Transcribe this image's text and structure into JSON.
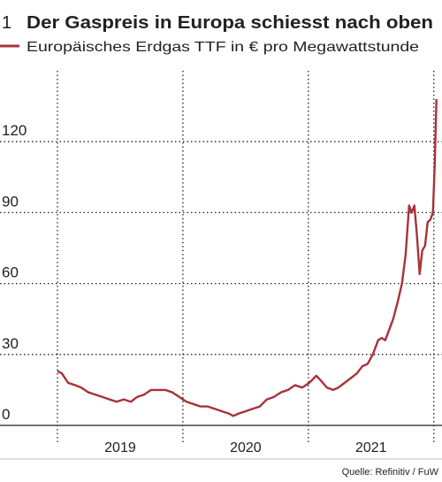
{
  "chart_data": {
    "type": "line",
    "chart_number": "1",
    "title": "Der Gaspreis in Europa schiesst nach oben",
    "source": "Quelle: Refinitiv / FuW",
    "x": [
      2019.0,
      2019.035,
      2019.085,
      2019.141,
      2019.19,
      2019.246,
      2019.303,
      2019.359,
      2019.415,
      2019.472,
      2019.528,
      2019.585,
      2019.634,
      2019.69,
      2019.746,
      2019.803,
      2019.859,
      2019.915,
      2019.972,
      2020.028,
      2020.085,
      2020.141,
      2020.197,
      2020.254,
      2020.31,
      2020.366,
      2020.401,
      2020.444,
      2020.5,
      2020.556,
      2020.613,
      2020.669,
      2020.725,
      2020.782,
      2020.838,
      2020.894,
      2020.951,
      2021.007,
      2021.063,
      2021.099,
      2021.148,
      2021.197,
      2021.239,
      2021.289,
      2021.338,
      2021.387,
      2021.43,
      2021.472,
      2021.514,
      2021.556,
      2021.585,
      2021.613,
      2021.641,
      2021.676,
      2021.711,
      2021.746,
      2021.775,
      2021.803,
      2021.824,
      2021.845,
      2021.866,
      2021.887,
      2021.908,
      2021.93,
      2021.951,
      2021.972,
      2021.993,
      2022.007,
      2022.021
    ],
    "series": [
      {
        "name": "Europäisches Erdgas TTF in € pro Megawattstunde",
        "color": "#a8323a",
        "values": [
          23,
          22,
          18,
          17,
          16,
          14,
          13,
          12,
          11,
          10,
          11,
          10,
          12,
          13,
          15,
          15,
          15,
          14,
          12,
          10,
          9,
          8,
          8,
          7,
          6,
          5,
          4,
          5,
          6,
          7,
          8,
          11,
          12,
          14,
          15,
          17,
          16,
          18,
          21,
          19,
          16,
          15,
          16,
          18,
          20,
          22,
          25,
          26,
          30,
          36,
          37,
          36,
          40,
          45,
          52,
          60,
          72,
          93,
          90,
          93,
          80,
          64,
          74,
          76,
          86,
          87,
          90,
          110,
          138
        ]
      }
    ],
    "xlim": [
      2019,
      2022.03
    ],
    "xgrid": [
      2019,
      2020,
      2021,
      2022
    ],
    "xticks": [
      {
        "value": 2019.5,
        "label": "2019"
      },
      {
        "value": 2020.5,
        "label": "2020"
      },
      {
        "value": 2021.5,
        "label": "2021"
      }
    ],
    "ylim": [
      0,
      150
    ],
    "yticks": [
      0,
      30,
      60,
      90,
      120
    ],
    "grid": true
  }
}
